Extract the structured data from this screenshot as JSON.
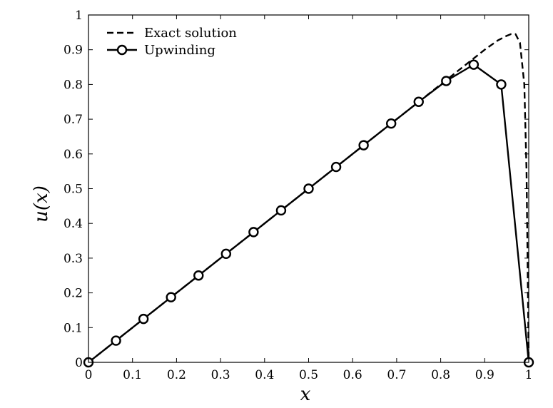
{
  "chart_data": {
    "type": "line",
    "xlabel": "x",
    "ylabel": "u(x)",
    "xlim": [
      0,
      1
    ],
    "ylim": [
      0,
      1
    ],
    "x_ticks": [
      "0",
      "0.1",
      "0.2",
      "0.3",
      "0.4",
      "0.5",
      "0.6",
      "0.7",
      "0.8",
      "0.9",
      "1"
    ],
    "y_ticks": [
      "0",
      "0.1",
      "0.2",
      "0.3",
      "0.4",
      "0.5",
      "0.6",
      "0.7",
      "0.8",
      "0.9",
      "1"
    ],
    "grid": false,
    "legend_position": "top-left",
    "series": [
      {
        "name": "Exact solution",
        "style": "dashed",
        "color": "#000000",
        "x": [
          0,
          0.1,
          0.2,
          0.3,
          0.4,
          0.5,
          0.6,
          0.7,
          0.8,
          0.85,
          0.9,
          0.93,
          0.95,
          0.96,
          0.97,
          0.98,
          0.99,
          0.995,
          1.0
        ],
        "y": [
          0,
          0.1,
          0.2,
          0.3,
          0.4,
          0.5,
          0.6,
          0.7,
          0.8,
          0.85,
          0.9,
          0.927,
          0.94,
          0.945,
          0.945,
          0.92,
          0.8,
          0.55,
          0
        ]
      },
      {
        "name": "Upwinding",
        "style": "solid",
        "marker": "circle",
        "color": "#000000",
        "x": [
          0,
          0.0625,
          0.125,
          0.1875,
          0.25,
          0.3125,
          0.375,
          0.4375,
          0.5,
          0.5625,
          0.625,
          0.6875,
          0.75,
          0.8125,
          0.875,
          0.9375,
          1.0
        ],
        "y": [
          0,
          0.0625,
          0.125,
          0.1875,
          0.25,
          0.3125,
          0.375,
          0.4375,
          0.5,
          0.5625,
          0.625,
          0.6875,
          0.75,
          0.81,
          0.857,
          0.8,
          0
        ]
      }
    ]
  }
}
